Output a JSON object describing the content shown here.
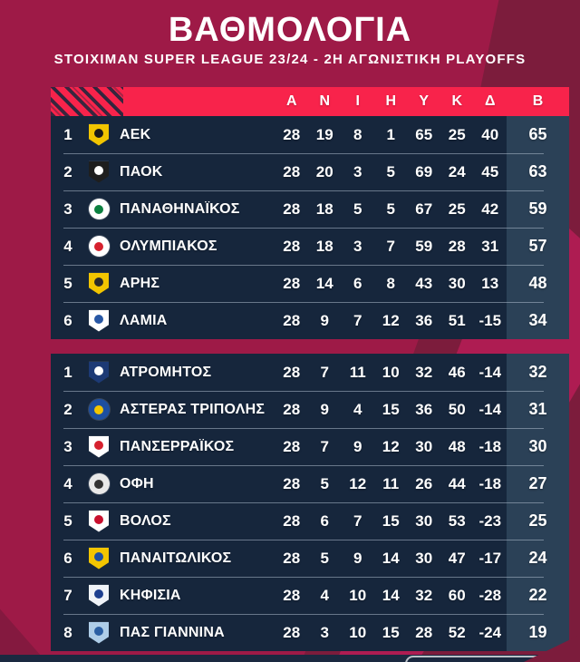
{
  "colors": {
    "background": "#9e1a47",
    "background_dark_ribbon": "#7c1c3c",
    "background_bright_ribbon": "#ae1c52",
    "header_bar_red": "#f8234b",
    "panel_navy": "#16263c",
    "points_column": "#2b4157",
    "text": "#ffffff"
  },
  "chart_data": {
    "type": "table",
    "title": "ΒΑΘΜΟΛΟΓΙΑ",
    "subtitle": "STOIXIMAN SUPER LEAGUE 23/24 - 2Η ΑΓΩΝΙΣΤΙΚΗ PLAYOFFS",
    "columns": [
      "Α",
      "Ν",
      "Ι",
      "Η",
      "Υ",
      "Κ",
      "Δ",
      "Β"
    ],
    "sections": [
      {
        "id": "top-group",
        "rows": [
          {
            "pos": 1,
            "team": "ΑΕΚ",
            "stats": [
              28,
              19,
              8,
              1,
              65,
              25,
              40
            ],
            "points": 65,
            "logo": {
              "shape": "shield",
              "bg": "#f2c500",
              "fg": "#1a1a1a"
            }
          },
          {
            "pos": 2,
            "team": "ΠΑΟΚ",
            "stats": [
              28,
              20,
              3,
              5,
              69,
              24,
              45
            ],
            "points": 63,
            "logo": {
              "shape": "shield",
              "bg": "#1e1e1e",
              "fg": "#ffffff"
            }
          },
          {
            "pos": 3,
            "team": "ΠΑΝΑΘΗΝΑΪΚΟΣ",
            "stats": [
              28,
              18,
              5,
              5,
              67,
              25,
              42
            ],
            "points": 59,
            "logo": {
              "shape": "circle",
              "bg": "#ffffff",
              "fg": "#0c8040"
            }
          },
          {
            "pos": 4,
            "team": "ΟΛΥΜΠΙΑΚΟΣ",
            "stats": [
              28,
              18,
              3,
              7,
              59,
              28,
              31
            ],
            "points": 57,
            "logo": {
              "shape": "circle",
              "bg": "#ffffff",
              "fg": "#d6212e"
            }
          },
          {
            "pos": 5,
            "team": "ΑΡΗΣ",
            "stats": [
              28,
              14,
              6,
              8,
              43,
              30,
              13
            ],
            "points": 48,
            "logo": {
              "shape": "shield",
              "bg": "#f2c500",
              "fg": "#2a2a2a"
            }
          },
          {
            "pos": 6,
            "team": "ΛΑΜΙΑ",
            "stats": [
              28,
              9,
              7,
              12,
              36,
              51,
              -15
            ],
            "points": 34,
            "logo": {
              "shape": "shield",
              "bg": "#ffffff",
              "fg": "#2857a4"
            }
          }
        ]
      },
      {
        "id": "bottom-group",
        "rows": [
          {
            "pos": 1,
            "team": "ΑΤΡΟΜΗΤΟΣ",
            "stats": [
              28,
              7,
              11,
              10,
              32,
              46,
              -14
            ],
            "points": 32,
            "logo": {
              "shape": "shield",
              "bg": "#1d3a75",
              "fg": "#ffffff"
            }
          },
          {
            "pos": 2,
            "team": "ΑΣΤΕΡΑΣ ΤΡΙΠΟΛΗΣ",
            "stats": [
              28,
              9,
              4,
              15,
              36,
              50,
              -14
            ],
            "points": 31,
            "logo": {
              "shape": "circle",
              "bg": "#1d4fa1",
              "fg": "#f2c500"
            }
          },
          {
            "pos": 3,
            "team": "ΠΑΝΣΕΡΡΑΪΚΟΣ",
            "stats": [
              28,
              7,
              9,
              12,
              30,
              48,
              -18
            ],
            "points": 30,
            "logo": {
              "shape": "shield",
              "bg": "#ffffff",
              "fg": "#d6212e"
            }
          },
          {
            "pos": 4,
            "team": "ΟΦΗ",
            "stats": [
              28,
              5,
              12,
              11,
              26,
              44,
              -18
            ],
            "points": 27,
            "logo": {
              "shape": "circle",
              "bg": "#e9e9e9",
              "fg": "#333333"
            }
          },
          {
            "pos": 5,
            "team": "ΒΟΛΟΣ",
            "stats": [
              28,
              6,
              7,
              15,
              30,
              53,
              -23
            ],
            "points": 25,
            "logo": {
              "shape": "shield",
              "bg": "#ffffff",
              "fg": "#c8102e"
            }
          },
          {
            "pos": 6,
            "team": "ΠΑΝΑΙΤΩΛΙΚΟΣ",
            "stats": [
              28,
              5,
              9,
              14,
              30,
              47,
              -17
            ],
            "points": 24,
            "logo": {
              "shape": "shield",
              "bg": "#f2c500",
              "fg": "#1d4fa1"
            }
          },
          {
            "pos": 7,
            "team": "ΚΗΦΙΣΙΑ",
            "stats": [
              28,
              4,
              10,
              14,
              32,
              60,
              -28
            ],
            "points": 22,
            "logo": {
              "shape": "shield",
              "bg": "#f0f3f8",
              "fg": "#1d3f8f"
            }
          },
          {
            "pos": 8,
            "team": "ΠΑΣ ΓΙΑΝΝΙΝΑ",
            "stats": [
              28,
              3,
              10,
              15,
              28,
              52,
              -24
            ],
            "points": 19,
            "logo": {
              "shape": "shield",
              "bg": "#aecde8",
              "fg": "#2b5fa3"
            }
          }
        ]
      }
    ]
  }
}
